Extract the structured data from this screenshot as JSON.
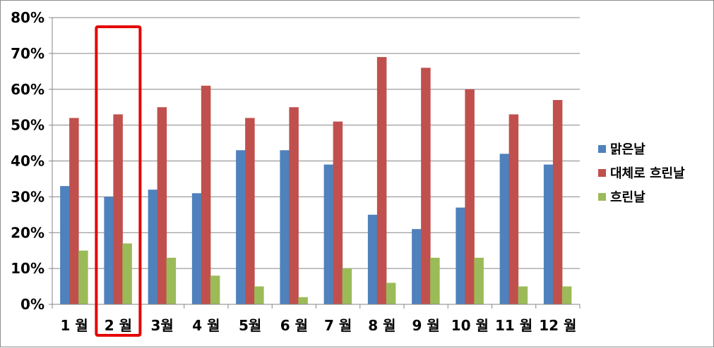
{
  "chart_data": {
    "type": "bar",
    "categories": [
      "1 월",
      "2 월",
      "3월",
      "4 월",
      "5월",
      "6 월",
      "7 월",
      "8 월",
      "9 월",
      "10 월",
      "11 월",
      "12 월"
    ],
    "series": [
      {
        "name": "맑은날",
        "color": "#4f81bd",
        "values": [
          33,
          30,
          32,
          31,
          43,
          43,
          39,
          25,
          21,
          27,
          42,
          39
        ]
      },
      {
        "name": "대체로 흐린날",
        "color": "#c0504d",
        "values": [
          52,
          53,
          55,
          61,
          52,
          55,
          51,
          69,
          66,
          60,
          53,
          57
        ]
      },
      {
        "name": "흐린날",
        "color": "#9bbb59",
        "values": [
          15,
          17,
          13,
          8,
          5,
          2,
          10,
          6,
          13,
          13,
          5,
          5
        ]
      }
    ],
    "y_tick_labels": [
      "0%",
      "10%",
      "20%",
      "30%",
      "40%",
      "50%",
      "60%",
      "70%",
      "80%"
    ],
    "ylim": [
      0,
      80
    ],
    "unit": "%",
    "grid": true,
    "legend_position": "right",
    "highlight": {
      "category": "2 월",
      "color": "#e60000"
    }
  }
}
